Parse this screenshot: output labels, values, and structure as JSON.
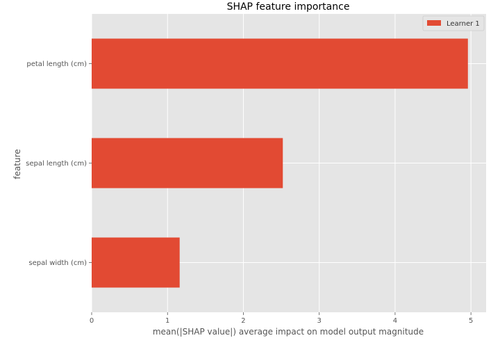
{
  "chart_data": {
    "type": "bar",
    "orientation": "horizontal",
    "title": "SHAP feature importance",
    "xlabel": "mean(|SHAP value|) average impact on model output magnitude",
    "ylabel": "feature",
    "categories": [
      "petal length (cm)",
      "sepal length (cm)",
      "sepal width (cm)"
    ],
    "series": [
      {
        "name": "Learner 1",
        "values": [
          4.96,
          2.52,
          1.16
        ],
        "color": "#E24A33"
      }
    ],
    "xlim": [
      0,
      5.2
    ],
    "xticks": [
      "0",
      "1",
      "2",
      "3",
      "4",
      "5"
    ],
    "grid": true,
    "legend_position": "top-right",
    "background_color": "#E5E5E5",
    "grid_color": "#FFFFFF"
  }
}
